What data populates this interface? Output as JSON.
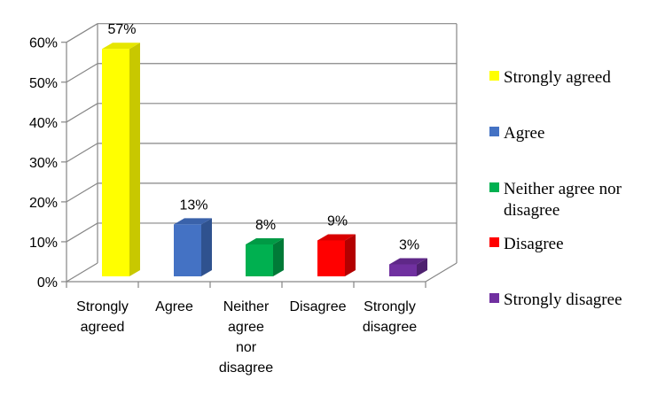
{
  "chart_data": {
    "type": "bar",
    "style": "3d-column",
    "categories": [
      [
        "Strongly",
        "agreed"
      ],
      [
        "Agree"
      ],
      [
        "Neither",
        "agree",
        "nor",
        "disagree"
      ],
      [
        "Disagree"
      ],
      [
        "Strongly",
        "disagree"
      ]
    ],
    "values": [
      57,
      13,
      8,
      9,
      3
    ],
    "data_labels": [
      "57%",
      "13%",
      "8%",
      "9%",
      "3%"
    ],
    "y_ticks": [
      "0%",
      "10%",
      "20%",
      "30%",
      "40%",
      "50%",
      "60%"
    ],
    "ylim": [
      0,
      60
    ],
    "grid": true,
    "legend_position": "right",
    "legend": [
      {
        "lines": [
          "Strongly agreed"
        ]
      },
      {
        "lines": [
          "Agree"
        ]
      },
      {
        "lines": [
          "Neither agree nor",
          "disagree"
        ]
      },
      {
        "lines": [
          "Disagree"
        ]
      },
      {
        "lines": [
          "Strongly disagree"
        ]
      }
    ],
    "colors": [
      {
        "front": "#FFFF00",
        "side": "#C8C800",
        "top": "#E6E600"
      },
      {
        "front": "#4472C4",
        "side": "#2F528F",
        "top": "#3A62AA"
      },
      {
        "front": "#00B050",
        "side": "#007A37",
        "top": "#009A45"
      },
      {
        "front": "#FF0000",
        "side": "#B30000",
        "top": "#D90000"
      },
      {
        "front": "#7030A0",
        "side": "#4E216F",
        "top": "#5F2888"
      }
    ],
    "gridline_color": "#868686"
  }
}
